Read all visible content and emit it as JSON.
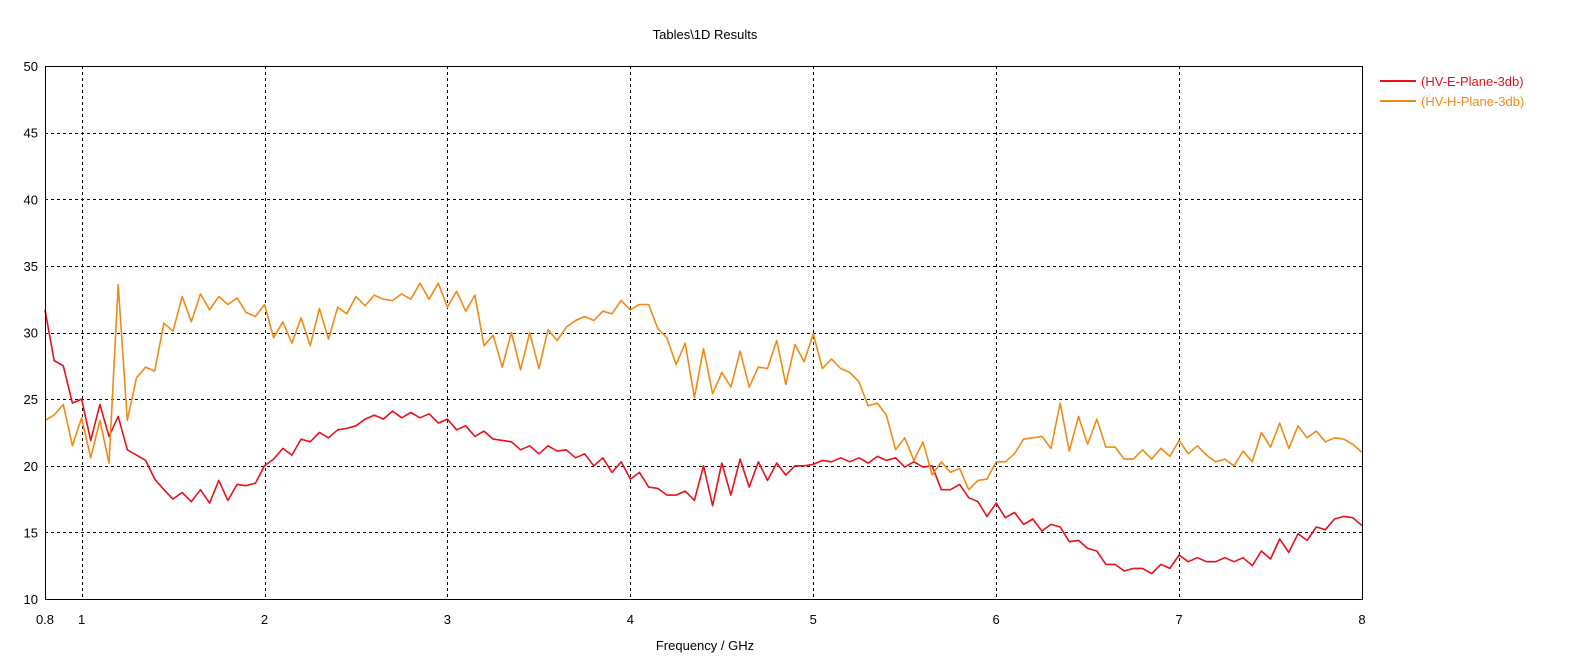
{
  "chart_data": {
    "type": "line",
    "title": "Tables\\1D Results",
    "xlabel": "Frequency / GHz",
    "ylabel": "",
    "xlim": [
      0.8,
      8
    ],
    "ylim": [
      10,
      50
    ],
    "xticks": [
      0.8,
      1,
      2,
      3,
      4,
      5,
      6,
      7,
      8
    ],
    "xtick_labels": [
      "0.8",
      "1",
      "2",
      "3",
      "4",
      "5",
      "6",
      "7",
      "8"
    ],
    "yticks": [
      10,
      15,
      20,
      25,
      30,
      35,
      40,
      45,
      50
    ],
    "ytick_labels": [
      "10",
      "15",
      "20",
      "25",
      "30",
      "35",
      "40",
      "45",
      "50"
    ],
    "grid": true,
    "legend_position": "top-right",
    "series": [
      {
        "name": "(HV-E-Plane-3db)",
        "color": "#e8101a",
        "points": [
          [
            0.8,
            31.7
          ],
          [
            0.85,
            27.9
          ],
          [
            0.9,
            27.5
          ],
          [
            0.95,
            24.7
          ],
          [
            1.0,
            25.0
          ],
          [
            1.05,
            21.9
          ],
          [
            1.1,
            24.6
          ],
          [
            1.15,
            22.2
          ],
          [
            1.2,
            23.7
          ],
          [
            1.25,
            21.2
          ],
          [
            1.3,
            20.8
          ],
          [
            1.35,
            20.4
          ],
          [
            1.4,
            19.0
          ],
          [
            1.45,
            18.2
          ],
          [
            1.5,
            17.5
          ],
          [
            1.55,
            18.0
          ],
          [
            1.6,
            17.3
          ],
          [
            1.65,
            18.2
          ],
          [
            1.7,
            17.2
          ],
          [
            1.75,
            18.9
          ],
          [
            1.8,
            17.4
          ],
          [
            1.85,
            18.6
          ],
          [
            1.9,
            18.5
          ],
          [
            1.95,
            18.7
          ],
          [
            2.0,
            20.0
          ],
          [
            2.05,
            20.5
          ],
          [
            2.1,
            21.3
          ],
          [
            2.15,
            20.8
          ],
          [
            2.2,
            22.0
          ],
          [
            2.25,
            21.8
          ],
          [
            2.3,
            22.5
          ],
          [
            2.35,
            22.1
          ],
          [
            2.4,
            22.7
          ],
          [
            2.45,
            22.8
          ],
          [
            2.5,
            23.0
          ],
          [
            2.55,
            23.5
          ],
          [
            2.6,
            23.8
          ],
          [
            2.65,
            23.5
          ],
          [
            2.7,
            24.1
          ],
          [
            2.75,
            23.6
          ],
          [
            2.8,
            24.0
          ],
          [
            2.85,
            23.6
          ],
          [
            2.9,
            23.9
          ],
          [
            2.95,
            23.2
          ],
          [
            3.0,
            23.5
          ],
          [
            3.05,
            22.7
          ],
          [
            3.1,
            23.0
          ],
          [
            3.15,
            22.2
          ],
          [
            3.2,
            22.6
          ],
          [
            3.25,
            22.0
          ],
          [
            3.3,
            21.9
          ],
          [
            3.35,
            21.8
          ],
          [
            3.4,
            21.2
          ],
          [
            3.45,
            21.5
          ],
          [
            3.5,
            20.9
          ],
          [
            3.55,
            21.5
          ],
          [
            3.6,
            21.1
          ],
          [
            3.65,
            21.2
          ],
          [
            3.7,
            20.6
          ],
          [
            3.75,
            20.9
          ],
          [
            3.8,
            20.0
          ],
          [
            3.85,
            20.6
          ],
          [
            3.9,
            19.5
          ],
          [
            3.95,
            20.3
          ],
          [
            4.0,
            19.0
          ],
          [
            4.05,
            19.5
          ],
          [
            4.1,
            18.4
          ],
          [
            4.15,
            18.3
          ],
          [
            4.2,
            17.8
          ],
          [
            4.25,
            17.8
          ],
          [
            4.3,
            18.1
          ],
          [
            4.35,
            17.4
          ],
          [
            4.4,
            20.0
          ],
          [
            4.45,
            17.0
          ],
          [
            4.5,
            20.2
          ],
          [
            4.55,
            17.8
          ],
          [
            4.6,
            20.5
          ],
          [
            4.65,
            18.4
          ],
          [
            4.7,
            20.3
          ],
          [
            4.75,
            18.9
          ],
          [
            4.8,
            20.2
          ],
          [
            4.85,
            19.3
          ],
          [
            4.9,
            20.0
          ],
          [
            4.95,
            20.0
          ],
          [
            5.0,
            20.1
          ],
          [
            5.05,
            20.4
          ],
          [
            5.1,
            20.3
          ],
          [
            5.15,
            20.6
          ],
          [
            5.2,
            20.3
          ],
          [
            5.25,
            20.6
          ],
          [
            5.3,
            20.2
          ],
          [
            5.35,
            20.7
          ],
          [
            5.4,
            20.4
          ],
          [
            5.45,
            20.6
          ],
          [
            5.5,
            19.9
          ],
          [
            5.55,
            20.3
          ],
          [
            5.6,
            19.9
          ],
          [
            5.65,
            20.0
          ],
          [
            5.7,
            18.2
          ],
          [
            5.75,
            18.2
          ],
          [
            5.8,
            18.6
          ],
          [
            5.85,
            17.6
          ],
          [
            5.9,
            17.3
          ],
          [
            5.95,
            16.2
          ],
          [
            6.0,
            17.2
          ],
          [
            6.05,
            16.1
          ],
          [
            6.1,
            16.5
          ],
          [
            6.15,
            15.6
          ],
          [
            6.2,
            16.0
          ],
          [
            6.25,
            15.1
          ],
          [
            6.3,
            15.6
          ],
          [
            6.35,
            15.4
          ],
          [
            6.4,
            14.3
          ],
          [
            6.45,
            14.4
          ],
          [
            6.5,
            13.8
          ],
          [
            6.55,
            13.6
          ],
          [
            6.6,
            12.6
          ],
          [
            6.65,
            12.6
          ],
          [
            6.7,
            12.1
          ],
          [
            6.75,
            12.3
          ],
          [
            6.8,
            12.3
          ],
          [
            6.85,
            11.9
          ],
          [
            6.9,
            12.6
          ],
          [
            6.95,
            12.3
          ],
          [
            7.0,
            13.3
          ],
          [
            7.05,
            12.8
          ],
          [
            7.1,
            13.1
          ],
          [
            7.15,
            12.8
          ],
          [
            7.2,
            12.8
          ],
          [
            7.25,
            13.1
          ],
          [
            7.3,
            12.8
          ],
          [
            7.35,
            13.1
          ],
          [
            7.4,
            12.5
          ],
          [
            7.45,
            13.6
          ],
          [
            7.5,
            13.0
          ],
          [
            7.55,
            14.5
          ],
          [
            7.6,
            13.5
          ],
          [
            7.65,
            14.9
          ],
          [
            7.7,
            14.4
          ],
          [
            7.75,
            15.4
          ],
          [
            7.8,
            15.2
          ],
          [
            7.85,
            16.0
          ],
          [
            7.9,
            16.2
          ],
          [
            7.95,
            16.1
          ],
          [
            8.0,
            15.5
          ]
        ]
      },
      {
        "name": "(HV-H-Plane-3db)",
        "color": "#f08a16",
        "points": [
          [
            0.8,
            23.4
          ],
          [
            0.85,
            23.8
          ],
          [
            0.9,
            24.6
          ],
          [
            0.95,
            21.5
          ],
          [
            1.0,
            23.6
          ],
          [
            1.05,
            20.6
          ],
          [
            1.1,
            23.4
          ],
          [
            1.15,
            20.2
          ],
          [
            1.2,
            33.6
          ],
          [
            1.25,
            23.4
          ],
          [
            1.3,
            26.6
          ],
          [
            1.35,
            27.4
          ],
          [
            1.4,
            27.1
          ],
          [
            1.45,
            30.7
          ],
          [
            1.5,
            30.1
          ],
          [
            1.55,
            32.7
          ],
          [
            1.6,
            30.8
          ],
          [
            1.65,
            32.9
          ],
          [
            1.7,
            31.7
          ],
          [
            1.75,
            32.7
          ],
          [
            1.8,
            32.1
          ],
          [
            1.85,
            32.6
          ],
          [
            1.9,
            31.5
          ],
          [
            1.95,
            31.2
          ],
          [
            2.0,
            32.1
          ],
          [
            2.05,
            29.6
          ],
          [
            2.1,
            30.8
          ],
          [
            2.15,
            29.2
          ],
          [
            2.2,
            31.1
          ],
          [
            2.25,
            29.0
          ],
          [
            2.3,
            31.8
          ],
          [
            2.35,
            29.5
          ],
          [
            2.4,
            31.9
          ],
          [
            2.45,
            31.4
          ],
          [
            2.5,
            32.7
          ],
          [
            2.55,
            32.0
          ],
          [
            2.6,
            32.8
          ],
          [
            2.65,
            32.5
          ],
          [
            2.7,
            32.4
          ],
          [
            2.75,
            32.9
          ],
          [
            2.8,
            32.5
          ],
          [
            2.85,
            33.7
          ],
          [
            2.9,
            32.5
          ],
          [
            2.95,
            33.7
          ],
          [
            3.0,
            31.9
          ],
          [
            3.05,
            33.1
          ],
          [
            3.1,
            31.6
          ],
          [
            3.15,
            32.8
          ],
          [
            3.2,
            29.0
          ],
          [
            3.25,
            29.8
          ],
          [
            3.3,
            27.4
          ],
          [
            3.35,
            30.0
          ],
          [
            3.4,
            27.2
          ],
          [
            3.45,
            30.0
          ],
          [
            3.5,
            27.3
          ],
          [
            3.55,
            30.2
          ],
          [
            3.6,
            29.4
          ],
          [
            3.65,
            30.4
          ],
          [
            3.7,
            30.9
          ],
          [
            3.75,
            31.2
          ],
          [
            3.8,
            30.9
          ],
          [
            3.85,
            31.6
          ],
          [
            3.9,
            31.4
          ],
          [
            3.95,
            32.4
          ],
          [
            4.0,
            31.7
          ],
          [
            4.05,
            32.1
          ],
          [
            4.1,
            32.1
          ],
          [
            4.15,
            30.3
          ],
          [
            4.2,
            29.6
          ],
          [
            4.25,
            27.6
          ],
          [
            4.3,
            29.2
          ],
          [
            4.35,
            25.1
          ],
          [
            4.4,
            28.8
          ],
          [
            4.45,
            25.4
          ],
          [
            4.5,
            27.0
          ],
          [
            4.55,
            25.9
          ],
          [
            4.6,
            28.6
          ],
          [
            4.65,
            25.9
          ],
          [
            4.7,
            27.4
          ],
          [
            4.75,
            27.3
          ],
          [
            4.8,
            29.4
          ],
          [
            4.85,
            26.1
          ],
          [
            4.9,
            29.1
          ],
          [
            4.95,
            27.8
          ],
          [
            5.0,
            29.9
          ],
          [
            5.05,
            27.3
          ],
          [
            5.1,
            28.0
          ],
          [
            5.15,
            27.3
          ],
          [
            5.2,
            27.0
          ],
          [
            5.25,
            26.3
          ],
          [
            5.3,
            24.5
          ],
          [
            5.35,
            24.7
          ],
          [
            5.4,
            23.8
          ],
          [
            5.45,
            21.2
          ],
          [
            5.5,
            22.1
          ],
          [
            5.55,
            20.4
          ],
          [
            5.6,
            21.8
          ],
          [
            5.65,
            19.3
          ],
          [
            5.7,
            20.3
          ],
          [
            5.75,
            19.5
          ],
          [
            5.8,
            19.8
          ],
          [
            5.85,
            18.2
          ],
          [
            5.9,
            18.9
          ],
          [
            5.95,
            19.0
          ],
          [
            6.0,
            20.3
          ],
          [
            6.05,
            20.3
          ],
          [
            6.1,
            20.9
          ],
          [
            6.15,
            22.0
          ],
          [
            6.2,
            22.1
          ],
          [
            6.25,
            22.2
          ],
          [
            6.3,
            21.3
          ],
          [
            6.35,
            24.7
          ],
          [
            6.4,
            21.1
          ],
          [
            6.45,
            23.7
          ],
          [
            6.5,
            21.6
          ],
          [
            6.55,
            23.5
          ],
          [
            6.6,
            21.4
          ],
          [
            6.65,
            21.4
          ],
          [
            6.7,
            20.5
          ],
          [
            6.75,
            20.5
          ],
          [
            6.8,
            21.2
          ],
          [
            6.85,
            20.5
          ],
          [
            6.9,
            21.3
          ],
          [
            6.95,
            20.7
          ],
          [
            7.0,
            21.9
          ],
          [
            7.05,
            20.9
          ],
          [
            7.1,
            21.5
          ],
          [
            7.15,
            20.8
          ],
          [
            7.2,
            20.3
          ],
          [
            7.25,
            20.5
          ],
          [
            7.3,
            20.0
          ],
          [
            7.35,
            21.1
          ],
          [
            7.4,
            20.3
          ],
          [
            7.45,
            22.5
          ],
          [
            7.5,
            21.4
          ],
          [
            7.55,
            23.2
          ],
          [
            7.6,
            21.3
          ],
          [
            7.65,
            23.0
          ],
          [
            7.7,
            22.1
          ],
          [
            7.75,
            22.6
          ],
          [
            7.8,
            21.8
          ],
          [
            7.85,
            22.1
          ],
          [
            7.9,
            22.0
          ],
          [
            7.95,
            21.6
          ],
          [
            8.0,
            21.0
          ]
        ]
      }
    ]
  }
}
